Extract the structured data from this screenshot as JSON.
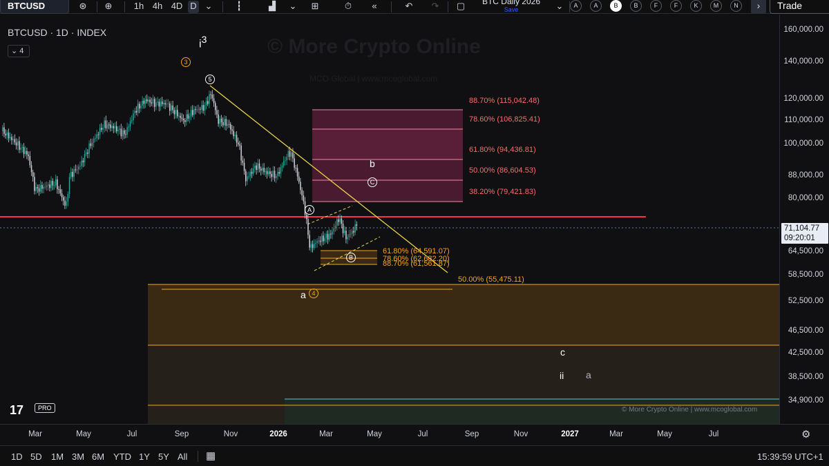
{
  "toolbar": {
    "symbol": "BTCUSD",
    "timeframes": [
      "1h",
      "4h",
      "4D",
      "D"
    ],
    "active_timeframe": "D",
    "layout_name": "BTC Daily 2026",
    "layout_save": "Save",
    "letter_buttons": [
      "A",
      "A",
      "B",
      "B",
      "F",
      "F",
      "K",
      "M",
      "N"
    ],
    "active_letter_index": 2,
    "trade_label": "Trade"
  },
  "legend": {
    "title": "BTCUSD · 1D · INDEX",
    "badge_count": "4"
  },
  "watermark": {
    "main": "© More Crypto Online",
    "sub": "MCO Global   |   www.mcoglobal.com"
  },
  "price_axis": {
    "labels": [
      "160,000.00",
      "140,000.00",
      "120,000.00",
      "110,000.00",
      "100,000.00",
      "88,000.00",
      "80,000.00",
      "64,500.00",
      "58,500.00",
      "52,500.00",
      "46,500.00",
      "42,500.00",
      "38,500.00",
      "34,900.00"
    ],
    "current_price": "71,104.77",
    "countdown": "09:20:01"
  },
  "time_axis": {
    "labels": [
      "Mar",
      "May",
      "Jul",
      "Sep",
      "Nov",
      "2026",
      "Mar",
      "May",
      "Jul",
      "Sep",
      "Nov",
      "2027",
      "Mar",
      "May",
      "Jul"
    ],
    "bold_labels": [
      "2026",
      "2027"
    ]
  },
  "fib_upper": [
    {
      "text": "88.70% (115,042.48)"
    },
    {
      "text": "78.60% (106,825.41)"
    },
    {
      "text": "61.80% (94,436.81)"
    },
    {
      "text": "50.00% (86,604.53)"
    },
    {
      "text": "38.20% (79,421.83)"
    }
  ],
  "fib_lower": [
    {
      "text": "61.80% (64,591.07)"
    },
    {
      "text": "78.60% (62,682.20)"
    },
    {
      "text": "88.70% (61,561.87)"
    }
  ],
  "fib_support": "50.00% (55,475.11)",
  "wave_labels": {
    "i3_main": "i",
    "i3_sup": "3",
    "b": "b",
    "a_main": "a",
    "c": "c",
    "ii": "ii",
    "a_small": "a",
    "circ_3": "3",
    "circ_5": "5",
    "circ_A": "A",
    "circ_B": "B",
    "circ_C": "C",
    "circ_4": "4"
  },
  "branding": {
    "logo": "17",
    "pro": "PRO",
    "copyright": "© More Crypto Online   |   www.mcoglobal.com"
  },
  "bottom_bar": {
    "ranges": [
      "1D",
      "5D",
      "1M",
      "3M",
      "6M",
      "YTD",
      "1Y",
      "5Y",
      "All"
    ],
    "clock": "15:39:59 UTC+1"
  },
  "colors": {
    "up": "#26a69a",
    "trendline": "#e8d44d",
    "resistance": "#f23645",
    "fib_upper": "#ff6b6b",
    "fib_lower": "#f5a623"
  }
}
